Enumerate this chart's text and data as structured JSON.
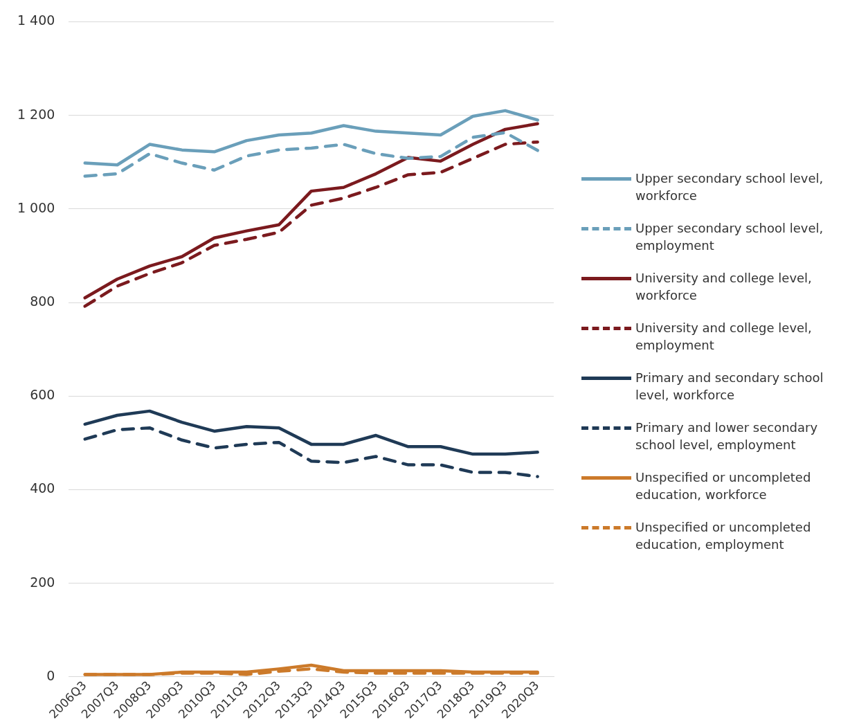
{
  "chart_data": {
    "type": "line",
    "categories": [
      "2006Q3",
      "2007Q3",
      "2008Q3",
      "2009Q3",
      "2010Q3",
      "2011Q3",
      "2012Q3",
      "2013Q3",
      "2014Q3",
      "2015Q3",
      "2016Q3",
      "2017Q3",
      "2018Q3",
      "2019Q3",
      "2020Q3"
    ],
    "ylim": [
      0,
      1400
    ],
    "yticks": [
      {
        "value": 0,
        "label": "0"
      },
      {
        "value": 200,
        "label": "200"
      },
      {
        "value": 400,
        "label": "400"
      },
      {
        "value": 600,
        "label": "600"
      },
      {
        "value": 800,
        "label": "800"
      },
      {
        "value": 1000,
        "label": "1 000"
      },
      {
        "value": 1200,
        "label": "1 200"
      },
      {
        "value": 1400,
        "label": "1 400"
      }
    ],
    "grid": "y",
    "legend": "right",
    "marker": "none",
    "series": [
      {
        "name": "Upper secondary school level, workforce",
        "color": "#6a9fba",
        "line_style": "solid",
        "values": [
          1098,
          1094,
          1138,
          1126,
          1122,
          1146,
          1158,
          1162,
          1178,
          1166,
          1162,
          1158,
          1198,
          1210,
          1190
        ]
      },
      {
        "name": "Upper secondary school level, employment",
        "color": "#6a9fba",
        "line_style": "dashed",
        "values": [
          1070,
          1075,
          1118,
          1098,
          1083,
          1113,
          1126,
          1130,
          1138,
          1118,
          1108,
          1112,
          1153,
          1163,
          1125
        ]
      },
      {
        "name": "University and college level, workforce",
        "color": "#7b1a1e",
        "line_style": "solid",
        "values": [
          810,
          850,
          878,
          898,
          938,
          953,
          966,
          1038,
          1046,
          1075,
          1110,
          1102,
          1138,
          1170,
          1182
        ]
      },
      {
        "name": "University and college level, employment",
        "color": "#7b1a1e",
        "line_style": "dashed",
        "values": [
          792,
          835,
          862,
          885,
          922,
          935,
          950,
          1008,
          1023,
          1046,
          1073,
          1078,
          1108,
          1138,
          1143
        ]
      },
      {
        "name": "Primary and secondary school level, workforce",
        "color": "#1f3a56",
        "line_style": "solid",
        "values": [
          540,
          559,
          568,
          544,
          525,
          535,
          532,
          497,
          497,
          516,
          492,
          492,
          476,
          476,
          480
        ]
      },
      {
        "name": "Primary and lower secondary school level, employment",
        "color": "#1f3a56",
        "line_style": "dashed",
        "values": [
          508,
          528,
          532,
          506,
          489,
          497,
          501,
          461,
          458,
          471,
          453,
          453,
          437,
          437,
          428
        ]
      },
      {
        "name": "Unspecified or uncompleted education, workforce",
        "color": "#cc7a2a",
        "line_style": "solid",
        "values": [
          5,
          5,
          5,
          10,
          10,
          10,
          17,
          25,
          13,
          13,
          13,
          13,
          10,
          10,
          10
        ]
      },
      {
        "name": "Unspecified or uncompleted education, employment",
        "color": "#cc7a2a",
        "line_style": "dashed",
        "values": [
          5,
          5,
          5,
          8,
          8,
          5,
          12,
          17,
          10,
          8,
          8,
          8,
          8,
          8,
          8
        ]
      }
    ]
  }
}
